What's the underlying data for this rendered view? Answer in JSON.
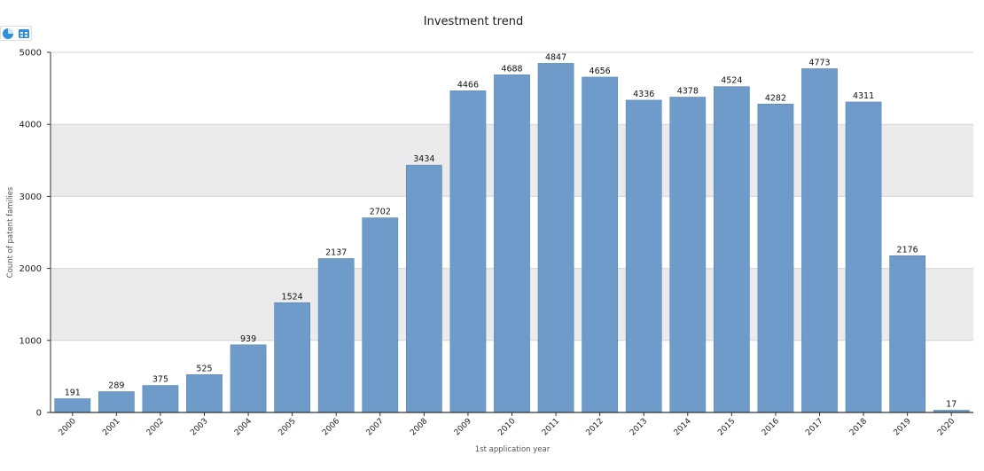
{
  "toolbar": {
    "pie_icon": "pie-chart-icon",
    "table_icon": "table-icon"
  },
  "colors": {
    "bar_fill": "#6e9bc9",
    "bar_stroke": "#5a86b3",
    "band_fill": "#ebebeb",
    "grid": "#d4d4d4",
    "axis": "#333333",
    "toolbar_accent": "#2f8fdc"
  },
  "chart_data": {
    "type": "bar",
    "title": "Investment trend",
    "xlabel": "1st application year",
    "ylabel": "Count of patent families",
    "categories": [
      "2000",
      "2001",
      "2002",
      "2003",
      "2004",
      "2005",
      "2006",
      "2007",
      "2008",
      "2009",
      "2010",
      "2011",
      "2012",
      "2013",
      "2014",
      "2015",
      "2016",
      "2017",
      "2018",
      "2019",
      "2020"
    ],
    "values": [
      191,
      289,
      375,
      525,
      939,
      1524,
      2137,
      2702,
      3434,
      4466,
      4688,
      4847,
      4656,
      4336,
      4378,
      4524,
      4282,
      4773,
      4311,
      2176,
      17
    ],
    "ylim": [
      0,
      5000
    ],
    "yticks": [
      0,
      1000,
      2000,
      3000,
      4000,
      5000
    ],
    "grid": true,
    "alternating_bands": true,
    "data_labels": true,
    "legend": "none"
  }
}
